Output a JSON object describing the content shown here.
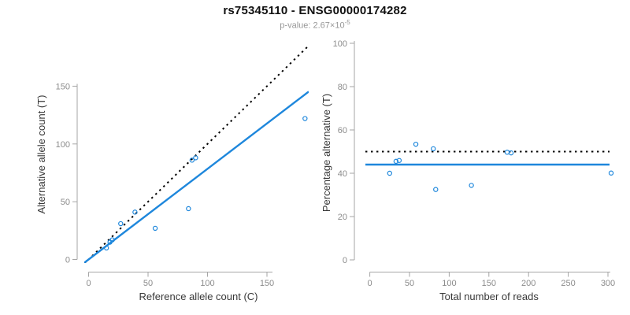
{
  "header": {
    "title": "rs75345110 - ENSG00000174282",
    "subtitle_prefix": "p-value: 2.67×10",
    "subtitle_exponent": "-5"
  },
  "colors": {
    "accent_blue": "#1E87DC",
    "dotted_line_black": "#000000",
    "axis_line_gray": "#A6A6A6",
    "tick_label_gray": "#8C8C8C",
    "axis_title_dark": "#383838",
    "background": "#FFFFFF"
  },
  "chart_data": [
    {
      "type": "scatter",
      "panel": "allele-counts",
      "xlabel": "Reference allele count (C)",
      "ylabel": "Alternative allele count (T)",
      "xticks": [
        0,
        50,
        100,
        150
      ],
      "yticks": [
        0,
        50,
        100,
        150
      ],
      "xlim": [
        0,
        185
      ],
      "ylim": [
        0,
        185
      ],
      "grid": false,
      "points": [
        [
          15,
          10
        ],
        [
          18,
          15
        ],
        [
          20,
          17
        ],
        [
          27,
          31
        ],
        [
          39,
          41
        ],
        [
          56,
          27
        ],
        [
          84,
          44
        ],
        [
          87,
          86
        ],
        [
          90,
          88
        ],
        [
          182,
          122
        ]
      ],
      "lines": [
        {
          "name": "identity-line",
          "style": "dotted",
          "color": "black",
          "slope": 1,
          "intercept": 0
        },
        {
          "name": "regression-line",
          "style": "solid",
          "color": "blue",
          "slope": 0.785,
          "intercept": 0
        }
      ]
    },
    {
      "type": "scatter",
      "panel": "percentage-vs-reads",
      "xlabel": "Total number of reads",
      "ylabel": "Percentage alternative (T)",
      "xticks": [
        0,
        50,
        100,
        150,
        200,
        250,
        300
      ],
      "yticks": [
        0,
        20,
        40,
        60,
        80,
        100
      ],
      "xlim": [
        0,
        312
      ],
      "ylim": [
        0,
        100
      ],
      "grid": false,
      "points": [
        [
          25,
          40
        ],
        [
          33,
          45.5
        ],
        [
          37,
          45.9
        ],
        [
          58,
          53.4
        ],
        [
          80,
          51.3
        ],
        [
          83,
          32.5
        ],
        [
          128,
          34.4
        ],
        [
          173,
          49.7
        ],
        [
          178,
          49.4
        ],
        [
          304,
          40.1
        ]
      ],
      "lines": [
        {
          "name": "expected-percentage-line",
          "style": "dotted",
          "color": "black",
          "hline": 50
        },
        {
          "name": "fitted-percentage-line",
          "style": "solid",
          "color": "blue",
          "hline": 44
        }
      ]
    }
  ]
}
